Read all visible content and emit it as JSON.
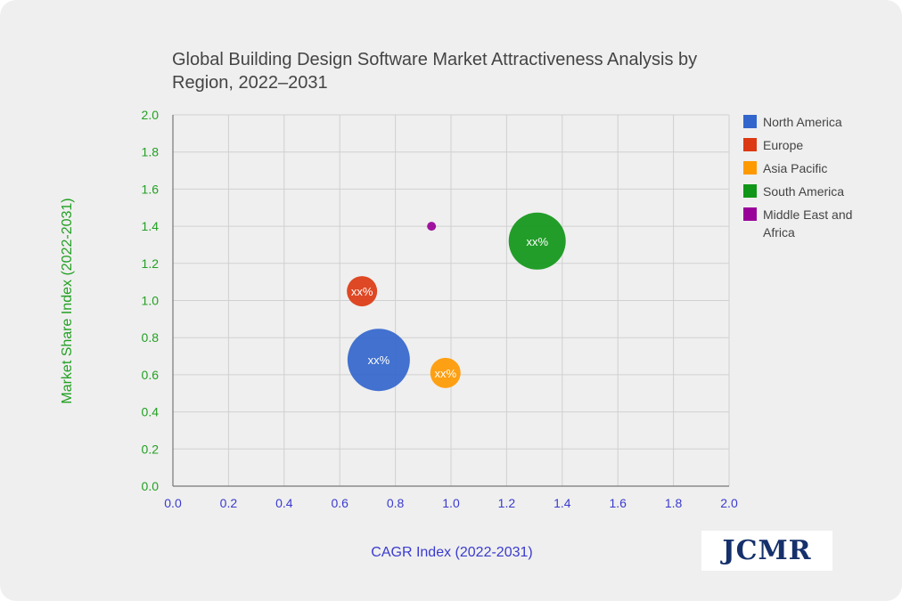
{
  "chart_data": {
    "type": "bubble",
    "title": "Global Building Design Software Market Attractiveness Analysis by Region, 2022–2031",
    "xlabel": "CAGR Index (2022-2031)",
    "ylabel": "Market Share Index (2022-2031)",
    "xlim": [
      0,
      2.0
    ],
    "ylim": [
      0,
      2.0
    ],
    "xticks": [
      "0.0",
      "0.2",
      "0.4",
      "0.6",
      "0.8",
      "1.0",
      "1.2",
      "1.4",
      "1.6",
      "1.8",
      "2.0"
    ],
    "yticks": [
      "0.0",
      "0.2",
      "0.4",
      "0.6",
      "0.8",
      "1.0",
      "1.2",
      "1.4",
      "1.6",
      "1.8",
      "2.0"
    ],
    "grid": true,
    "legend_position": "right",
    "series": [
      {
        "name": "North America",
        "x": 0.74,
        "y": 0.68,
        "size": 35,
        "label": "xx%",
        "color": "#3366cc"
      },
      {
        "name": "Europe",
        "x": 0.68,
        "y": 1.05,
        "size": 17,
        "label": "xx%",
        "color": "#dc3912"
      },
      {
        "name": "Asia Pacific",
        "x": 0.98,
        "y": 0.61,
        "size": 17,
        "label": "xx%",
        "color": "#ff9900"
      },
      {
        "name": "South America",
        "x": 1.31,
        "y": 1.32,
        "size": 32,
        "label": "xx%",
        "color": "#109618"
      },
      {
        "name": "Middle East and Africa",
        "x": 0.93,
        "y": 1.4,
        "size": 5,
        "label": "",
        "color": "#990099"
      }
    ]
  },
  "branding": {
    "logo_text": "JCMR"
  },
  "colors": {
    "background": "#efefef",
    "grid": "#d0d0d0",
    "y_tick": "#22a022",
    "x_tick": "#3a3ad0"
  }
}
